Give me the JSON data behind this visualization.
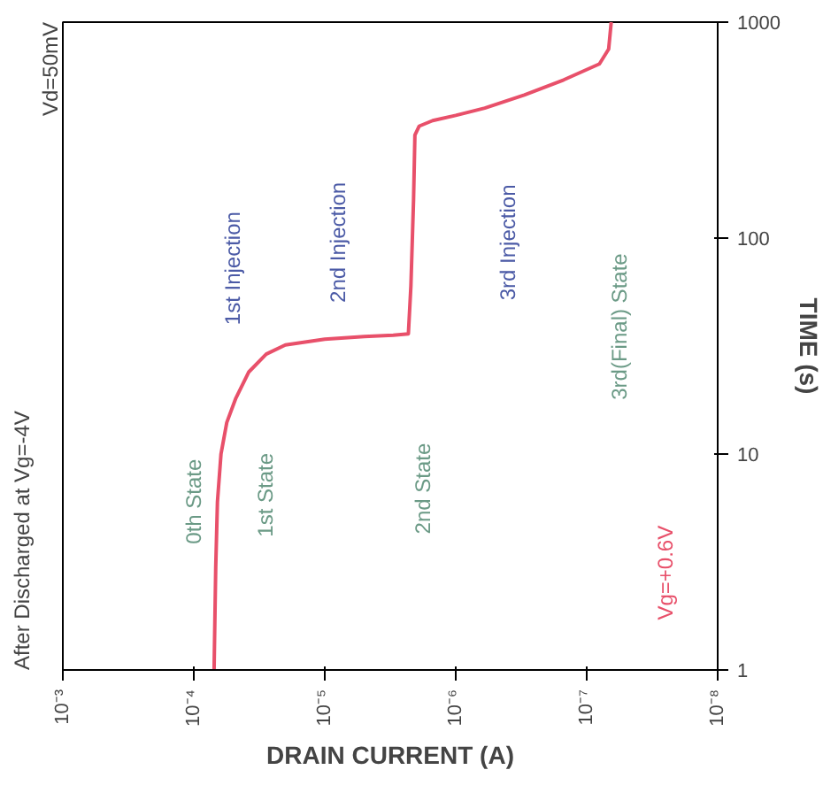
{
  "chart_data": {
    "type": "line",
    "title": "After Discharged at Vg=-4V",
    "subtitle": "Vd=50mV",
    "xlabel": "DRAIN CURRENT (A)",
    "ylabel": "TIME (s)",
    "log": "xy",
    "grid": false,
    "xlim": [
      0.001,
      1e-08
    ],
    "ylim": [
      1,
      1000
    ],
    "xticks": [
      {
        "value": 0.001,
        "label": "10⁻³"
      },
      {
        "value": 0.0001,
        "label": "10⁻⁴"
      },
      {
        "value": 1e-05,
        "label": "10⁻⁵"
      },
      {
        "value": 1e-06,
        "label": "10⁻⁶"
      },
      {
        "value": 1e-07,
        "label": "10⁻⁷"
      },
      {
        "value": 1e-08,
        "label": "10⁻⁸"
      }
    ],
    "yticks": [
      1,
      10,
      100,
      1000
    ],
    "x": [
      7e-05,
      6.8e-05,
      6.6e-05,
      6.2e-05,
      5.6e-05,
      4.8e-05,
      3.8e-05,
      2.8e-05,
      2e-05,
      1e-05,
      5e-06,
      3e-06,
      2.3e-06,
      2.2e-06,
      2.1e-06,
      2.05e-06,
      1.9e-06,
      1.5e-06,
      1e-06,
      6e-07,
      3e-07,
      1.5e-07,
      8e-08,
      6.8e-08,
      6.5e-08
    ],
    "series": [
      {
        "color": "#e8506a",
        "values": [
          1,
          3,
          6,
          10,
          14,
          18,
          24,
          29,
          32,
          34,
          35,
          35.5,
          36,
          60,
          150,
          300,
          330,
          350,
          370,
          400,
          460,
          540,
          640,
          750,
          1000
        ]
      }
    ],
    "annotations": [
      "0th State",
      "1st State",
      "1st Injection",
      "2nd Injection",
      "2nd State",
      "3rd Injection",
      "3rd(Final) State",
      "Vg=+0.6V"
    ]
  }
}
